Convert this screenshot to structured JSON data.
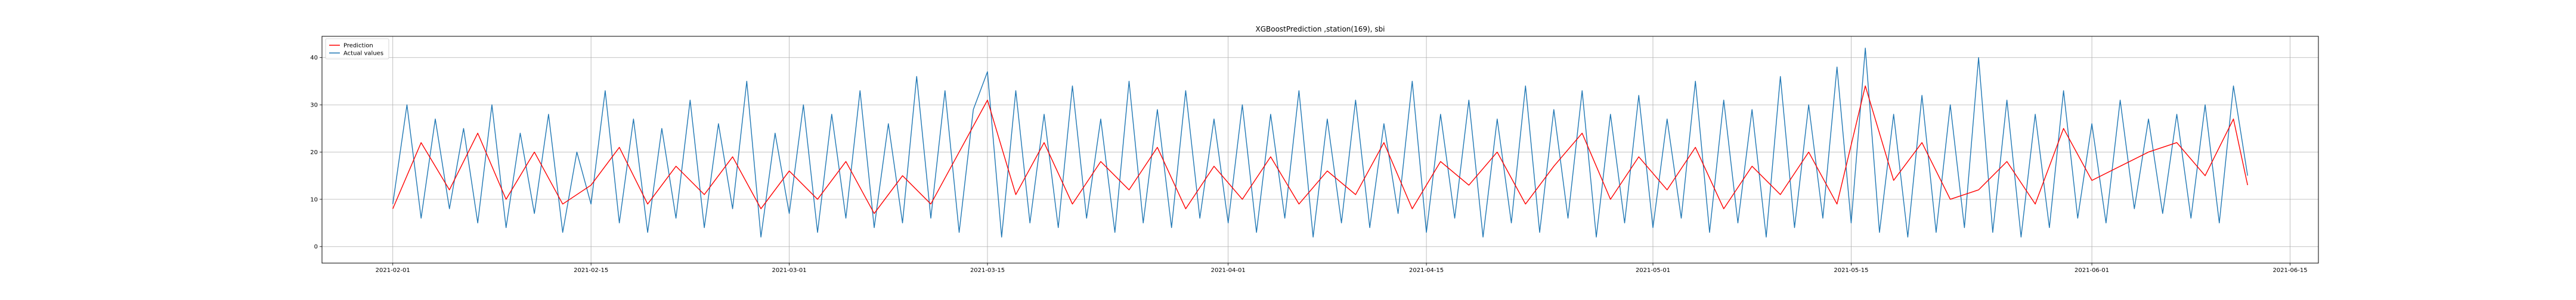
{
  "chart_data": {
    "type": "line",
    "title": "XGBoostPrediction ,station(169), sbi",
    "xlabel": "",
    "ylabel": "",
    "x_type": "date",
    "x_range": [
      "2021-01-27",
      "2021-06-17"
    ],
    "ylim": [
      -3.5,
      44.5
    ],
    "x_ticks": [
      "2021-02-01",
      "2021-02-15",
      "2021-03-01",
      "2021-03-15",
      "2021-04-01",
      "2021-04-15",
      "2021-05-01",
      "2021-05-15",
      "2021-06-01",
      "2021-06-15"
    ],
    "y_ticks": [
      0,
      10,
      20,
      30,
      40
    ],
    "grid": true,
    "legend_position": "top-left",
    "series": [
      {
        "name": "Prediction",
        "color": "#ff0000",
        "x": [
          "2021-02-01",
          "2021-02-03",
          "2021-02-05",
          "2021-02-07",
          "2021-02-09",
          "2021-02-11",
          "2021-02-13",
          "2021-02-15",
          "2021-02-17",
          "2021-02-19",
          "2021-02-21",
          "2021-02-23",
          "2021-02-25",
          "2021-02-27",
          "2021-03-01",
          "2021-03-03",
          "2021-03-05",
          "2021-03-07",
          "2021-03-09",
          "2021-03-11",
          "2021-03-13",
          "2021-03-15",
          "2021-03-17",
          "2021-03-19",
          "2021-03-21",
          "2021-03-23",
          "2021-03-25",
          "2021-03-27",
          "2021-03-29",
          "2021-03-31",
          "2021-04-02",
          "2021-04-04",
          "2021-04-06",
          "2021-04-08",
          "2021-04-10",
          "2021-04-12",
          "2021-04-14",
          "2021-04-16",
          "2021-04-18",
          "2021-04-20",
          "2021-04-22",
          "2021-04-24",
          "2021-04-26",
          "2021-04-28",
          "2021-04-30",
          "2021-05-02",
          "2021-05-04",
          "2021-05-06",
          "2021-05-08",
          "2021-05-10",
          "2021-05-12",
          "2021-05-14",
          "2021-05-16",
          "2021-05-18",
          "2021-05-20",
          "2021-05-22",
          "2021-05-24",
          "2021-05-26",
          "2021-05-28",
          "2021-05-30",
          "2021-06-01",
          "2021-06-03",
          "2021-06-05",
          "2021-06-07",
          "2021-06-09",
          "2021-06-11",
          "2021-06-12"
        ],
        "y": [
          8,
          22,
          12,
          24,
          10,
          20,
          9,
          13,
          21,
          9,
          17,
          11,
          19,
          8,
          16,
          10,
          18,
          7,
          15,
          9,
          20,
          31,
          11,
          22,
          9,
          18,
          12,
          21,
          8,
          17,
          10,
          19,
          9,
          16,
          11,
          22,
          8,
          18,
          13,
          20,
          9,
          17,
          24,
          10,
          19,
          12,
          21,
          8,
          17,
          11,
          20,
          9,
          34,
          14,
          22,
          10,
          12,
          18,
          9,
          25,
          14,
          17,
          20,
          22,
          15,
          27,
          13
        ]
      },
      {
        "name": "Actual values",
        "color": "#1f77b4",
        "x": [
          "2021-02-01",
          "2021-02-02",
          "2021-02-03",
          "2021-02-04",
          "2021-02-05",
          "2021-02-06",
          "2021-02-07",
          "2021-02-08",
          "2021-02-09",
          "2021-02-10",
          "2021-02-11",
          "2021-02-12",
          "2021-02-13",
          "2021-02-14",
          "2021-02-15",
          "2021-02-16",
          "2021-02-17",
          "2021-02-18",
          "2021-02-19",
          "2021-02-20",
          "2021-02-21",
          "2021-02-22",
          "2021-02-23",
          "2021-02-24",
          "2021-02-25",
          "2021-02-26",
          "2021-02-27",
          "2021-02-28",
          "2021-03-01",
          "2021-03-02",
          "2021-03-03",
          "2021-03-04",
          "2021-03-05",
          "2021-03-06",
          "2021-03-07",
          "2021-03-08",
          "2021-03-09",
          "2021-03-10",
          "2021-03-11",
          "2021-03-12",
          "2021-03-13",
          "2021-03-14",
          "2021-03-15",
          "2021-03-16",
          "2021-03-17",
          "2021-03-18",
          "2021-03-19",
          "2021-03-20",
          "2021-03-21",
          "2021-03-22",
          "2021-03-23",
          "2021-03-24",
          "2021-03-25",
          "2021-03-26",
          "2021-03-27",
          "2021-03-28",
          "2021-03-29",
          "2021-03-30",
          "2021-03-31",
          "2021-04-01",
          "2021-04-02",
          "2021-04-03",
          "2021-04-04",
          "2021-04-05",
          "2021-04-06",
          "2021-04-07",
          "2021-04-08",
          "2021-04-09",
          "2021-04-10",
          "2021-04-11",
          "2021-04-12",
          "2021-04-13",
          "2021-04-14",
          "2021-04-15",
          "2021-04-16",
          "2021-04-17",
          "2021-04-18",
          "2021-04-19",
          "2021-04-20",
          "2021-04-21",
          "2021-04-22",
          "2021-04-23",
          "2021-04-24",
          "2021-04-25",
          "2021-04-26",
          "2021-04-27",
          "2021-04-28",
          "2021-04-29",
          "2021-04-30",
          "2021-05-01",
          "2021-05-02",
          "2021-05-03",
          "2021-05-04",
          "2021-05-05",
          "2021-05-06",
          "2021-05-07",
          "2021-05-08",
          "2021-05-09",
          "2021-05-10",
          "2021-05-11",
          "2021-05-12",
          "2021-05-13",
          "2021-05-14",
          "2021-05-15",
          "2021-05-16",
          "2021-05-17",
          "2021-05-18",
          "2021-05-19",
          "2021-05-20",
          "2021-05-21",
          "2021-05-22",
          "2021-05-23",
          "2021-05-24",
          "2021-05-25",
          "2021-05-26",
          "2021-05-27",
          "2021-05-28",
          "2021-05-29",
          "2021-05-30",
          "2021-05-31",
          "2021-06-01",
          "2021-06-02",
          "2021-06-03",
          "2021-06-04",
          "2021-06-05",
          "2021-06-06",
          "2021-06-07",
          "2021-06-08",
          "2021-06-09",
          "2021-06-10",
          "2021-06-11",
          "2021-06-12"
        ],
        "y": [
          9,
          30,
          6,
          27,
          8,
          25,
          5,
          30,
          4,
          24,
          7,
          28,
          3,
          20,
          9,
          33,
          5,
          27,
          3,
          25,
          6,
          31,
          4,
          26,
          8,
          35,
          2,
          24,
          7,
          30,
          3,
          28,
          6,
          33,
          4,
          26,
          5,
          36,
          6,
          33,
          3,
          29,
          37,
          2,
          33,
          5,
          28,
          4,
          34,
          6,
          27,
          3,
          35,
          5,
          29,
          4,
          33,
          6,
          27,
          5,
          30,
          3,
          28,
          6,
          33,
          2,
          27,
          5,
          31,
          4,
          26,
          7,
          35,
          3,
          28,
          6,
          31,
          2,
          27,
          5,
          34,
          3,
          29,
          6,
          33,
          2,
          28,
          5,
          32,
          4,
          27,
          6,
          35,
          3,
          31,
          5,
          29,
          2,
          36,
          4,
          30,
          6,
          38,
          5,
          42,
          3,
          28,
          2,
          32,
          3,
          30,
          4,
          40,
          3,
          31,
          2,
          28,
          4,
          33,
          6,
          26,
          5,
          31,
          8,
          27,
          7,
          28,
          6,
          30,
          5,
          34,
          15
        ]
      }
    ]
  }
}
